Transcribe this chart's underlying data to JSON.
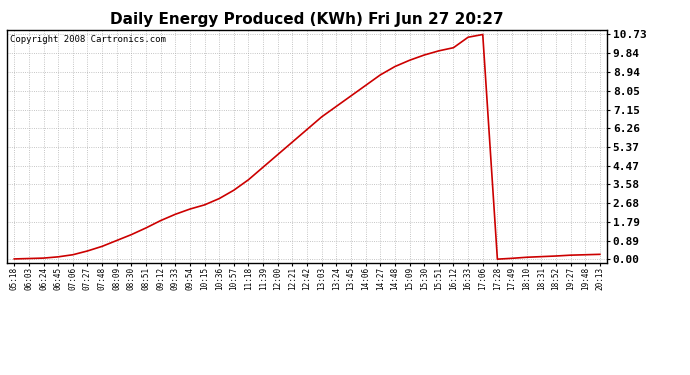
{
  "title": "Daily Energy Produced (KWh) Fri Jun 27 20:27",
  "copyright": "Copyright 2008 Cartronics.com",
  "line_color": "#cc0000",
  "background_color": "#ffffff",
  "plot_bg_color": "#ffffff",
  "grid_color": "#aaaaaa",
  "yticks": [
    0.0,
    0.89,
    1.79,
    2.68,
    3.58,
    4.47,
    5.37,
    6.26,
    7.15,
    8.05,
    8.94,
    9.84,
    10.73
  ],
  "ymax": 10.73,
  "x_labels": [
    "05:18",
    "06:03",
    "06:24",
    "06:45",
    "07:06",
    "07:27",
    "07:48",
    "08:09",
    "08:30",
    "08:51",
    "09:12",
    "09:33",
    "09:54",
    "10:15",
    "10:36",
    "10:57",
    "11:18",
    "11:39",
    "12:00",
    "12:21",
    "12:42",
    "13:03",
    "13:24",
    "13:45",
    "14:06",
    "14:27",
    "14:48",
    "15:09",
    "15:30",
    "15:51",
    "16:12",
    "16:33",
    "17:06",
    "17:28",
    "17:49",
    "18:10",
    "18:31",
    "18:52",
    "19:27",
    "19:48",
    "20:13"
  ],
  "y_values": [
    0.02,
    0.04,
    0.06,
    0.12,
    0.22,
    0.4,
    0.62,
    0.9,
    1.18,
    1.5,
    1.85,
    2.15,
    2.4,
    2.6,
    2.9,
    3.3,
    3.8,
    4.4,
    5.0,
    5.6,
    6.2,
    6.8,
    7.3,
    7.8,
    8.3,
    8.8,
    9.2,
    9.5,
    9.75,
    9.95,
    10.1,
    10.6,
    10.73,
    0.01,
    0.05,
    0.1,
    0.13,
    0.16,
    0.2,
    0.22,
    0.24
  ],
  "title_fontsize": 11,
  "copyright_fontsize": 6.5,
  "ytick_fontsize": 8,
  "xtick_fontsize": 5.5,
  "line_width": 1.2,
  "grid_linestyle": ":",
  "grid_linewidth": 0.6,
  "grid_alpha": 0.9
}
